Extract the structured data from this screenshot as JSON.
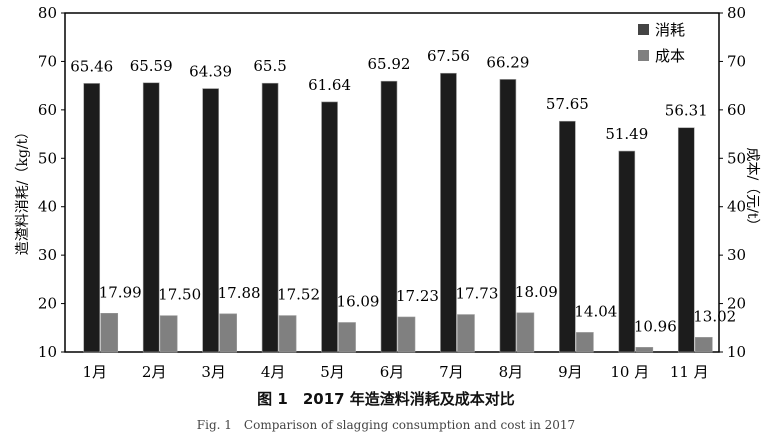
{
  "chart_data": {
    "type": "bar",
    "categories": [
      "1月",
      "2月",
      "3月",
      "4月",
      "5月",
      "6月",
      "7月",
      "8月",
      "9月",
      "10 月",
      "11 月"
    ],
    "series": [
      {
        "name": "消耗",
        "axis": "left",
        "color": "#1c1c1c",
        "values": [
          65.46,
          65.59,
          64.39,
          65.5,
          61.64,
          65.92,
          67.56,
          66.29,
          57.65,
          51.49,
          56.31
        ],
        "labels": [
          "65.46",
          "65.59",
          "64.39",
          "65.5",
          "61.64",
          "65.92",
          "67.56",
          "66.29",
          "57.65",
          "51.49",
          "56.31"
        ]
      },
      {
        "name": "成本",
        "axis": "right",
        "color": "#808080",
        "values": [
          17.99,
          17.5,
          17.88,
          17.52,
          16.09,
          17.23,
          17.73,
          18.09,
          14.04,
          10.96,
          13.02
        ],
        "labels": [
          "17.99",
          "17.50",
          "17.88",
          "17.52",
          "16.09",
          "17.23",
          "17.73",
          "18.09",
          "14.04",
          "10.96",
          "13.02"
        ]
      }
    ],
    "ylabel": "造渣料消耗/（kg/t）",
    "y2label": "成本/（元/t）",
    "ylim": [
      10,
      80
    ],
    "y2lim": [
      10,
      80
    ],
    "yticks": [
      "10",
      "20",
      "30",
      "40",
      "50",
      "60",
      "70",
      "80"
    ],
    "legend": "top-right",
    "grid": false
  },
  "caption": {
    "cn": "图 1　2017 年造渣料消耗及成本对比",
    "en": "Fig. 1　Comparison of slagging consumption and cost in 2017"
  }
}
